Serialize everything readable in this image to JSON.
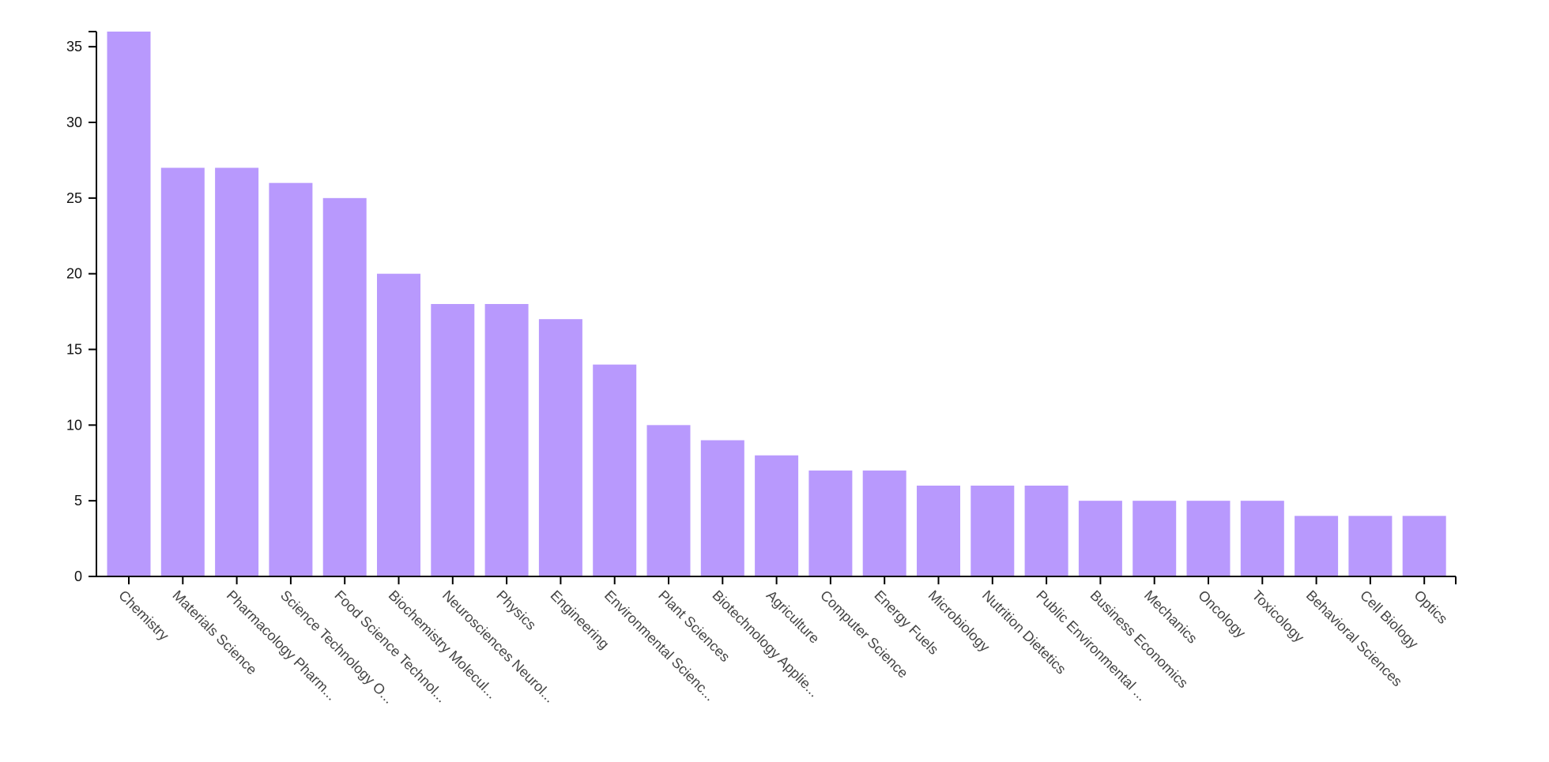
{
  "chart_data": {
    "type": "bar",
    "title": "",
    "xlabel": "",
    "ylabel": "",
    "ylim": [
      0,
      36
    ],
    "yticks": [
      0,
      5,
      10,
      15,
      20,
      25,
      30,
      35
    ],
    "grid": false,
    "legend": "none",
    "bar_color": "#b899fd",
    "categories": [
      "Chemistry",
      "Materials Science",
      "Pharmacology Pharm...",
      "Science Technology O...",
      "Food Science Technol...",
      "Biochemistry Molecul...",
      "Neurosciences Neurol...",
      "Physics",
      "Engineering",
      "Environmental Scienc...",
      "Plant Sciences",
      "Biotechnology Applie...",
      "Agriculture",
      "Computer Science",
      "Energy Fuels",
      "Microbiology",
      "Nutrition Dietetics",
      "Public Environmental ...",
      "Business Economics",
      "Mechanics",
      "Oncology",
      "Toxicology",
      "Behavioral Sciences",
      "Cell Biology",
      "Optics"
    ],
    "values": [
      36,
      27,
      27,
      26,
      25,
      20,
      18,
      18,
      17,
      14,
      10,
      9,
      8,
      7,
      7,
      6,
      6,
      6,
      5,
      5,
      5,
      5,
      4,
      4,
      4
    ]
  }
}
